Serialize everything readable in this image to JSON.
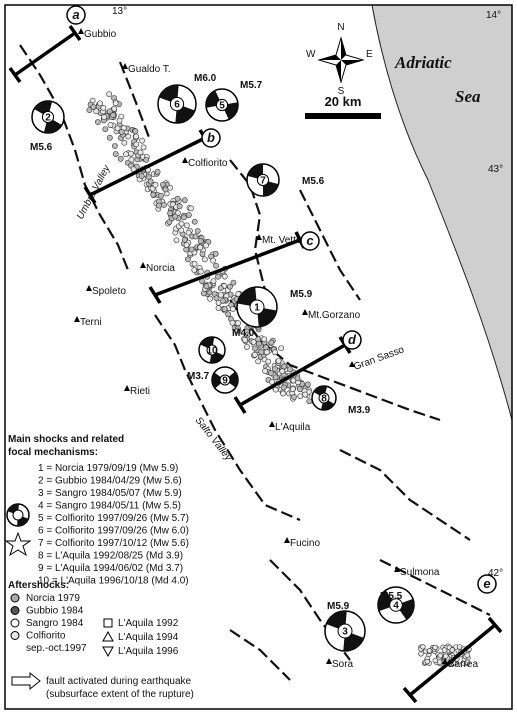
{
  "grid": {
    "lon": [
      "13°",
      "14°"
    ],
    "lat": [
      "43°",
      "42°"
    ]
  },
  "compass": {
    "n": "N",
    "e": "E",
    "s": "S",
    "w": "W"
  },
  "sea": {
    "line1": "Adriatic",
    "line2": "Sea"
  },
  "scale_bar": "20 km",
  "profiles": [
    "a",
    "b",
    "c",
    "d",
    "e"
  ],
  "places": [
    "Gubbio",
    "Gualdo T.",
    "Colfiorito",
    "Mt. Vettore",
    "Norcia",
    "Spoleto",
    "Mt.Gorzano",
    "Terni",
    "Gran Sasso",
    "Rieti",
    "L'Aquila",
    "Fucino",
    "Sulmona",
    "Sora",
    "Barrea"
  ],
  "valleys": [
    "Umbra Valley",
    "Salto Valley"
  ],
  "mechanisms": [
    {
      "id": "1",
      "magnitude": "M5.9"
    },
    {
      "id": "2",
      "magnitude": "M5.6"
    },
    {
      "id": "3",
      "magnitude": "M5.9"
    },
    {
      "id": "4",
      "magnitude": "M5.5"
    },
    {
      "id": "5",
      "magnitude": "M5.7"
    },
    {
      "id": "6",
      "magnitude": "M6.0"
    },
    {
      "id": "7",
      "magnitude": "M5.6"
    },
    {
      "id": "8",
      "magnitude": "M3.9"
    },
    {
      "id": "9",
      "magnitude": "M3.7"
    },
    {
      "id": "10",
      "magnitude": "M4.0"
    }
  ],
  "legend": {
    "main_title": [
      "Main shocks and related",
      "focal mechanisms:"
    ],
    "main_entries": [
      "1 = Norcia 1979/09/19 (Mw 5.9)",
      "2 = Gubbio 1984/04/29 (Mw 5.6)",
      "3 = Sangro 1984/05/07 (Mw 5.9)",
      "4 = Sangro 1984/05/11 (Mw 5.5)",
      "5 = Colfiorito 1997/09/26 (Mw 5.7)",
      "6 = Colfiorito 1997/09/26 (Mw 6.0)",
      "7 = Colfiorito 1997/10/12 (Mw 5.6)",
      "8 = L'Aquila 1992/08/25 (Md 3.9)",
      "9 = L'Aquila 1994/06/02 (Md 3.7)",
      "10 = L'Aquila 1996/10/18 (Md 4.0)"
    ],
    "aftershocks_title": "Aftershocks:",
    "aftershocks_left": [
      "Norcia 1979",
      "Gubbio 1984",
      "Sangro 1984",
      "Colfiorito",
      "sep.-oct.1997"
    ],
    "aftershocks_right": [
      "L'Aquila 1992",
      "L'Aquila 1994",
      "L'Aquila 1996"
    ],
    "arrow": [
      "fault activated during earthquake",
      "(subsurface extent of the rupture)"
    ]
  }
}
